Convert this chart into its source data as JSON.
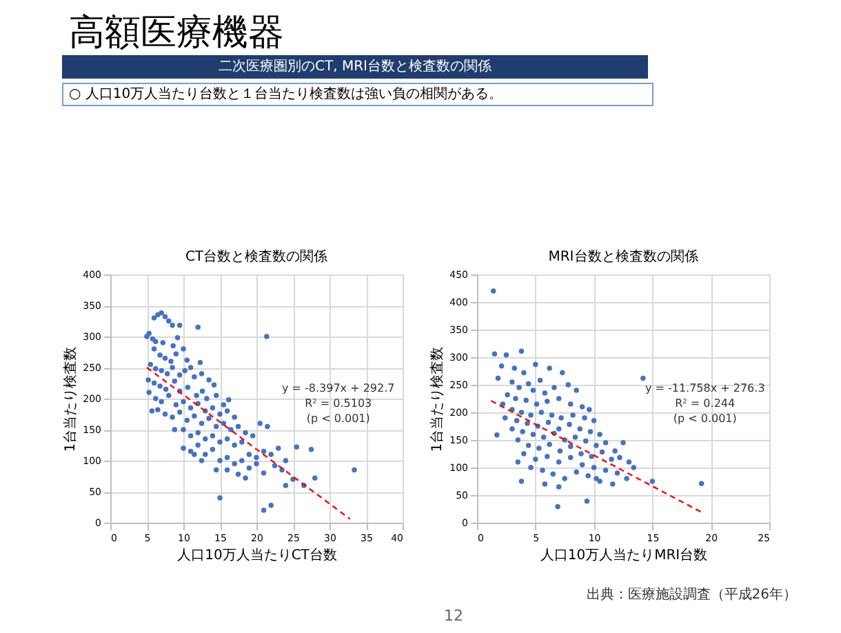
{
  "chart_data": [
    {
      "type": "other",
      "title": "高額医療機器",
      "subtitle": "二次医療圏別のCT, MRI台数と検査数の関係",
      "annotations": [
        "○ 人口10万人当たり台数と１台当たり検査数は強い負の相関がある。",
        "12"
      ]
    },
    {
      "type": "scatter",
      "title": "CT台数と検査数の関係",
      "xlabel": "人口10万人当たりCT台数",
      "ylabel": "1台当たり検査数",
      "xlim": [
        0,
        40
      ],
      "xticks": [
        0,
        5,
        10,
        15,
        20,
        25,
        30,
        35,
        40
      ],
      "ylim": [
        0,
        400
      ],
      "yticks": [
        0,
        50,
        100,
        150,
        200,
        250,
        300,
        350,
        400
      ],
      "grid": true,
      "annotations": [
        "y = -8.397x + 292.7",
        "R² = 0.5103",
        "(p < 0.001)"
      ],
      "series": [
        {
          "color": "#4472c4",
          "marker": "circle",
          "x": [
            6,
            6.5,
            7,
            7.5,
            8,
            8.5,
            9.5,
            12,
            5,
            5.3,
            5.8,
            6.2,
            7.2,
            8.6,
            9.2,
            10,
            6,
            6.8,
            7.5,
            8.3,
            9,
            10.5,
            12.3,
            11,
            5.5,
            6.2,
            7,
            7.8,
            8.5,
            9.5,
            10.2,
            11.5,
            12.5,
            13.5,
            14.2,
            5.2,
            6,
            6.8,
            7.6,
            8.8,
            9.5,
            10.6,
            11.8,
            12.6,
            13.2,
            14.5,
            15.5,
            16.2,
            5.3,
            6.2,
            7,
            8,
            9,
            10,
            11,
            12,
            13,
            14,
            15,
            16,
            17,
            5.7,
            6.5,
            7.5,
            8.5,
            9.5,
            10.5,
            11.5,
            12.5,
            13.5,
            14.5,
            15.5,
            16.5,
            17.5,
            18.5,
            8.8,
            10,
            11,
            12,
            13,
            14,
            15,
            16,
            17,
            18,
            19.5,
            20.5,
            21.5,
            10,
            11,
            12,
            13,
            14,
            15,
            16,
            17,
            18,
            19,
            20,
            21,
            22,
            23,
            24,
            22.5,
            25.5,
            27.5,
            11.5,
            12.5,
            14.5,
            16,
            17.5,
            19,
            20,
            21,
            23.5,
            25,
            28,
            15,
            21,
            22,
            18.5,
            21.4,
            33.4,
            26.5,
            24
          ],
          "values": [
            330,
            335,
            338,
            332,
            325,
            318,
            318,
            315,
            300,
            305,
            296,
            292,
            290,
            285,
            298,
            280,
            280,
            270,
            265,
            260,
            272,
            262,
            258,
            250,
            255,
            248,
            245,
            240,
            250,
            238,
            245,
            235,
            240,
            230,
            222,
            230,
            225,
            220,
            215,
            228,
            212,
            218,
            205,
            212,
            200,
            205,
            190,
            198,
            210,
            200,
            195,
            205,
            190,
            195,
            185,
            192,
            180,
            185,
            175,
            180,
            170,
            180,
            182,
            175,
            170,
            178,
            165,
            172,
            160,
            168,
            155,
            160,
            150,
            155,
            145,
            150,
            150,
            140,
            145,
            135,
            140,
            130,
            135,
            125,
            130,
            140,
            160,
            155,
            120,
            115,
            125,
            110,
            118,
            100,
            105,
            95,
            100,
            110,
            105,
            115,
            110,
            120,
            100,
            92,
            122,
            118,
            110,
            100,
            85,
            85,
            78,
            88,
            95,
            80,
            85,
            70,
            72,
            40,
            20,
            28,
            72,
            300,
            85,
            60,
            60
          ]
        },
        {
          "type": "line",
          "color": "#ff0000",
          "line_style": "dashed",
          "x": [
            5,
            32.8
          ],
          "values": [
            250,
            6
          ]
        }
      ]
    },
    {
      "type": "scatter",
      "title": "MRI台数と検査数の関係",
      "xlabel": "人口10万人当たりMRI台数",
      "ylabel": "1台当たり検査数",
      "xlim": [
        0,
        25
      ],
      "xticks": [
        0,
        5,
        10,
        15,
        20,
        25
      ],
      "ylim": [
        0,
        450
      ],
      "yticks": [
        0,
        50,
        100,
        150,
        200,
        250,
        300,
        350,
        400,
        450
      ],
      "grid": true,
      "annotations": [
        "y = -11.758x + 276.3",
        "R² = 0.244",
        "(p < 0.001)",
        "出典：医療施設調査（平成26年）"
      ],
      "series": [
        {
          "color": "#4472c4",
          "marker": "circle",
          "x": [
            1.4,
            1.5,
            2.5,
            3.8,
            2.1,
            3.2,
            1.8,
            4,
            5,
            4.4,
            5.4,
            6.2,
            7.3,
            3,
            3.6,
            4.8,
            5.8,
            6.6,
            7.8,
            8.5,
            2.6,
            3.3,
            4.2,
            5.1,
            6,
            7,
            8,
            9,
            9.6,
            2.2,
            3,
            3.8,
            4.6,
            5.5,
            6.4,
            7.2,
            8.2,
            9.2,
            10,
            2.4,
            3.4,
            4.3,
            5.2,
            6.1,
            7,
            7.9,
            8.8,
            9.7,
            10.5,
            3,
            3.9,
            4.8,
            5.7,
            6.6,
            7.5,
            8.4,
            9.3,
            10.2,
            11,
            11.8,
            12.5,
            1.7,
            3.5,
            4.4,
            5.3,
            6.2,
            7.1,
            8,
            8.9,
            9.8,
            10.7,
            11.5,
            12.2,
            13,
            13.4,
            4,
            5,
            6,
            7,
            8,
            9,
            10,
            11,
            12,
            3.5,
            4.6,
            5.6,
            6.5,
            7.5,
            8.5,
            9.5,
            10.5,
            11.6,
            12.8,
            3.8,
            5.8,
            7,
            9.4,
            6.9,
            14.2,
            19.2,
            15,
            10.2
          ],
          "values": [
            420,
            306,
            304,
            311,
            284,
            280,
            262,
            272,
            287,
            252,
            258,
            280,
            272,
            255,
            245,
            240,
            235,
            245,
            250,
            240,
            232,
            225,
            222,
            215,
            220,
            225,
            215,
            210,
            205,
            215,
            205,
            200,
            195,
            200,
            195,
            190,
            195,
            190,
            185,
            190,
            185,
            180,
            175,
            182,
            170,
            178,
            170,
            165,
            160,
            170,
            165,
            160,
            155,
            162,
            150,
            155,
            148,
            140,
            145,
            130,
            145,
            159,
            150,
            140,
            135,
            142,
            130,
            138,
            125,
            120,
            128,
            115,
            118,
            110,
            100,
            125,
            115,
            120,
            110,
            118,
            105,
            100,
            95,
            90,
            110,
            100,
            95,
            88,
            80,
            92,
            85,
            75,
            70,
            80,
            75,
            70,
            65,
            39,
            29,
            262,
            71,
            75,
            80
          ]
        },
        {
          "type": "line",
          "color": "#ff0000",
          "line_style": "dashed",
          "x": [
            1.2,
            19.2
          ],
          "values": [
            221,
            19
          ]
        }
      ]
    }
  ]
}
